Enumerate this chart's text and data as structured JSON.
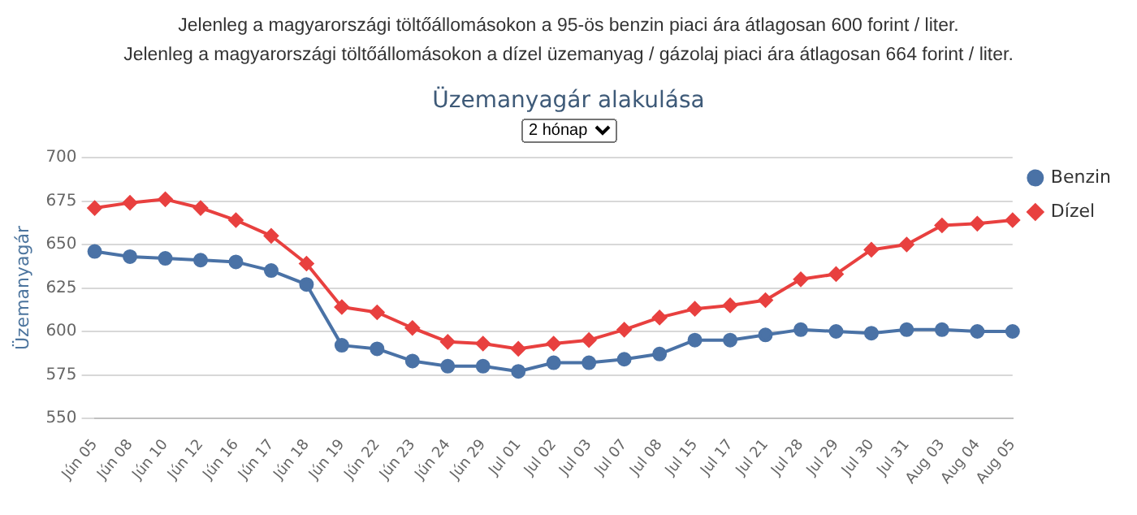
{
  "chart_data": {
    "type": "line",
    "title": "Üzemanyagár alakulása",
    "ylabel": "Üzemanyagár",
    "annotations": [
      "Jelenleg a magyarországi töltőállomásokon a 95-ös benzin piaci ára átlagosan 600 forint / liter.",
      "Jelenleg a magyarországi töltőállomásokon a dízel üzemanyag / gázolaj piaci ára átlagosan 664 forint / liter.",
      "2 hónap"
    ],
    "categories": [
      "Jún 05",
      "Jún 08",
      "Jún 10",
      "Jún 12",
      "Jún 16",
      "Jún 17",
      "Jún 18",
      "Jún 19",
      "Jún 22",
      "Jún 23",
      "Jún 24",
      "Jún 29",
      "Jul 01",
      "Jul 02",
      "Jul 03",
      "Jul 07",
      "Jul 08",
      "Jul 15",
      "Jul 17",
      "Jul 21",
      "Jul 28",
      "Jul 29",
      "Jul 30",
      "Jul 31",
      "Aug 03",
      "Aug 04",
      "Aug 05"
    ],
    "series": [
      {
        "name": "Benzin",
        "color": "#4a72a6",
        "marker": "circle",
        "values": [
          646,
          643,
          642,
          641,
          640,
          635,
          627,
          592,
          590,
          583,
          580,
          580,
          577,
          582,
          582,
          584,
          587,
          595,
          595,
          598,
          601,
          600,
          599,
          601,
          601,
          600,
          600
        ]
      },
      {
        "name": "Dízel",
        "color": "#e8403f",
        "marker": "diamond",
        "values": [
          671,
          674,
          676,
          671,
          664,
          655,
          639,
          614,
          611,
          602,
          594,
          593,
          590,
          593,
          595,
          601,
          608,
          613,
          615,
          618,
          630,
          633,
          647,
          650,
          661,
          662,
          664
        ]
      }
    ],
    "ylim": [
      550,
      700
    ],
    "yticks": [
      550,
      575,
      600,
      625,
      650,
      675,
      700
    ],
    "grid": "y",
    "legend": "right",
    "line_style": "solid"
  }
}
